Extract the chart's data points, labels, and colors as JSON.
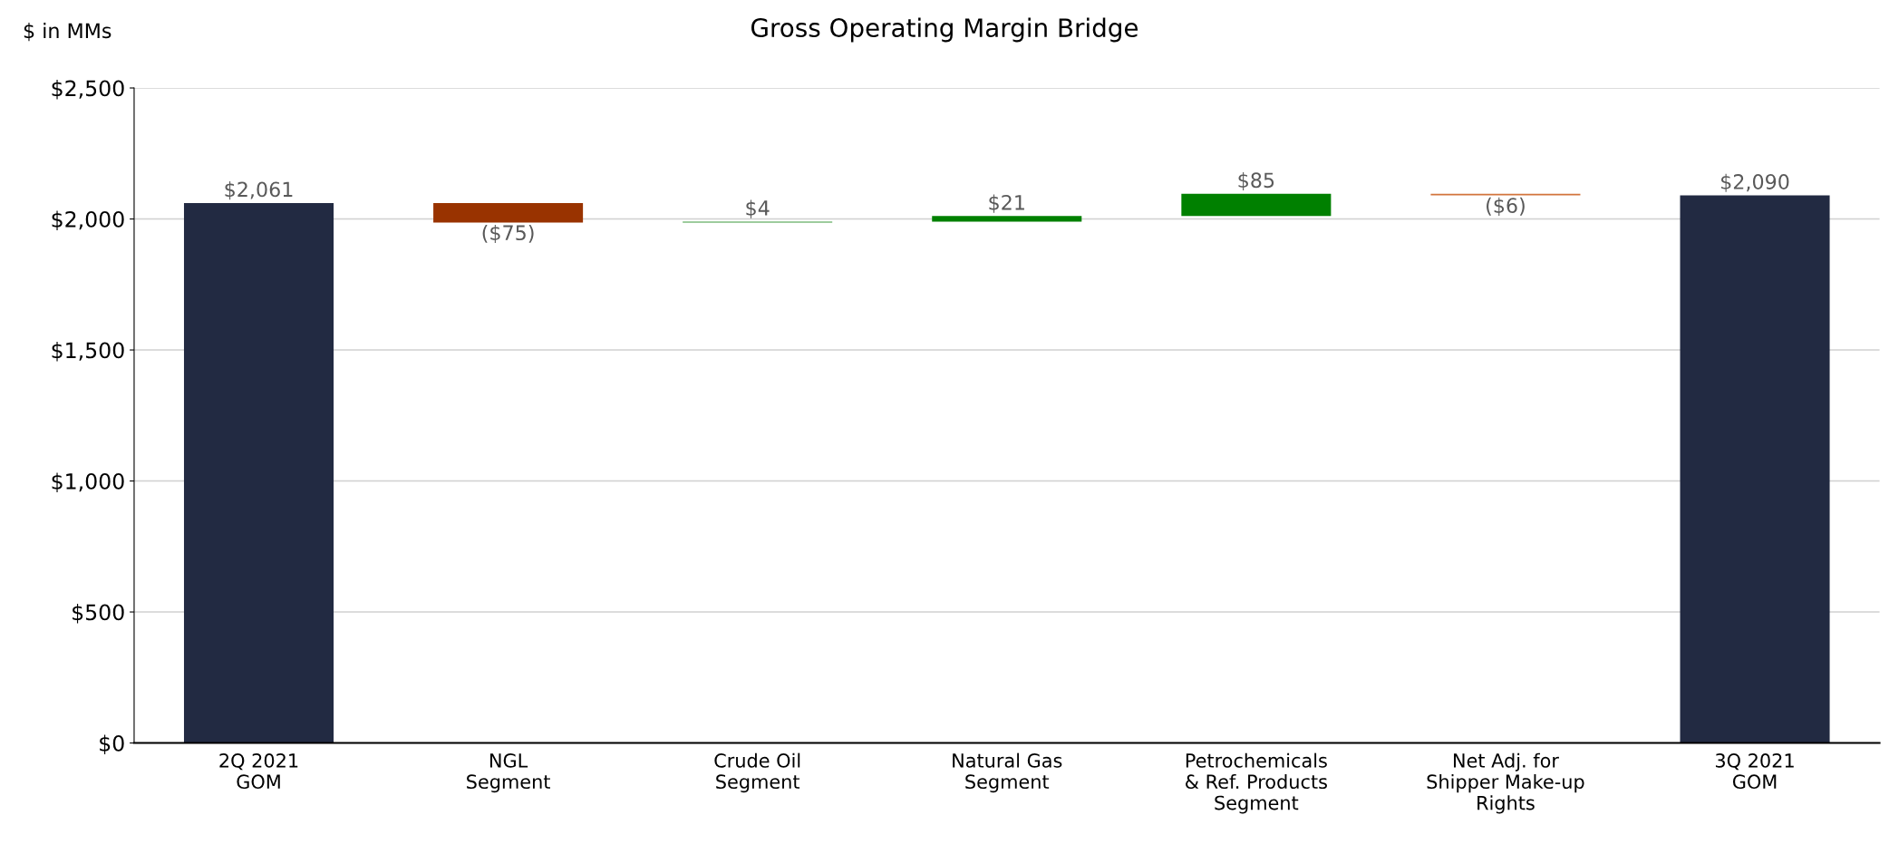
{
  "chart_data": {
    "type": "bar",
    "title": "Gross Operating Margin Bridge",
    "ylabel": "$ in MMs",
    "categories": [
      "2Q 2021\nGOM",
      "NGL\nSegment",
      "Crude Oil\nSegment",
      "Natural Gas\nSegment",
      "Petrochemicals\n& Ref. Products\nSegment",
      "Net Adj. for\nShipper Make-up\nRights",
      "3Q 2021\nGOM"
    ],
    "values": [
      2061,
      -75,
      4,
      21,
      85,
      -6,
      2090
    ],
    "base": [
      0,
      2061,
      1986,
      1990,
      2011,
      2096,
      0
    ],
    "colors": [
      "#222a42",
      "#993300",
      "#3c9a3c",
      "#008000",
      "#008000",
      "#d2743c",
      "#222a42"
    ],
    "value_labels": [
      "$2,061",
      "($75)",
      "$4",
      "$21",
      "$85",
      "($6)",
      "$2,090"
    ],
    "ylim": [
      0,
      2500
    ],
    "yticks": [
      {
        "value": 0,
        "label": "$0"
      },
      {
        "value": 500,
        "label": "$500"
      },
      {
        "value": 1000,
        "label": "$1,000"
      },
      {
        "value": 1500,
        "label": "$1,500"
      },
      {
        "value": 2000,
        "label": "$2,000"
      },
      {
        "value": 2500,
        "label": "$2,500"
      }
    ],
    "grid": "y"
  }
}
